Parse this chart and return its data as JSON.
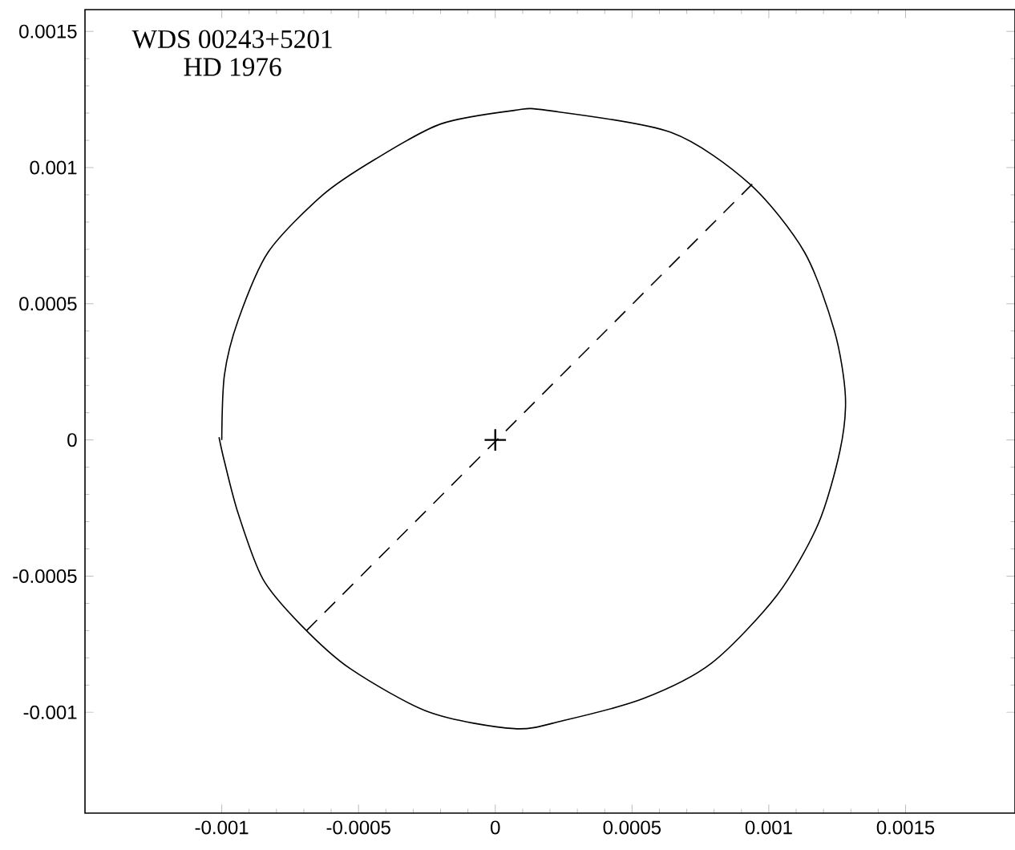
{
  "chart_data": {
    "type": "line",
    "xlim": [
      -0.0015,
      0.0019
    ],
    "ylim": [
      -0.00137,
      0.00158
    ],
    "xticks": [
      -0.001,
      -0.0005,
      0,
      0.0005,
      0.001,
      0.0015
    ],
    "yticks": [
      -0.001,
      -0.0005,
      0,
      0.0005,
      0.001,
      0.0015
    ],
    "annotations": [
      "WDS 00243+5201",
      "HD 1976"
    ],
    "series": [
      {
        "color": "#000000",
        "line_style": "solid",
        "marker": "none",
        "x": [
          -0.001,
          -0.00099,
          -0.00094,
          -0.00083,
          -0.00063,
          -0.00044,
          -0.0002,
          7e-05,
          0.00019,
          0.00064,
          0.00093,
          0.00113,
          0.00124,
          0.00128,
          0.00126,
          0.00118,
          0.00103,
          0.00079,
          0.00054,
          0.00025,
          7e-05,
          -0.00024,
          -0.00053,
          -0.00071,
          -0.00085,
          -0.00094,
          -0.00099,
          -0.00101
        ],
        "values": [
          0.0,
          0.00024,
          0.00044,
          0.00069,
          0.0009,
          0.00103,
          0.00116,
          0.00121,
          0.00121,
          0.00113,
          0.00094,
          0.00069,
          0.0004,
          0.00016,
          -4e-05,
          -0.00031,
          -0.00057,
          -0.00082,
          -0.00095,
          -0.00103,
          -0.00106,
          -0.001,
          -0.00084,
          -0.00068,
          -0.00051,
          -0.00027,
          -8e-05,
          1e-05
        ]
      },
      {
        "type": "line",
        "color": "#000000",
        "line_style": "dashed",
        "marker": "none",
        "x": [
          -0.00069,
          0.00094
        ],
        "values": [
          -0.0007,
          0.00094
        ]
      },
      {
        "type": "scatter",
        "color": "#000000",
        "marker": "cross",
        "x": [
          0
        ],
        "values": [
          0
        ]
      }
    ]
  }
}
